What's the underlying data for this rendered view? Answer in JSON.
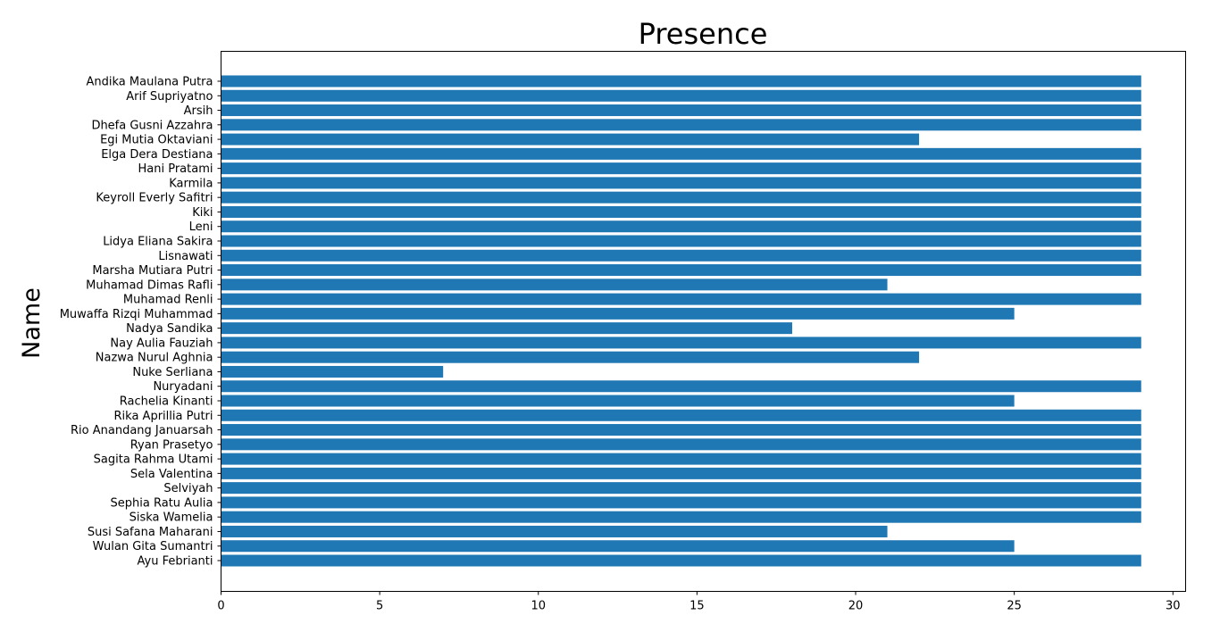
{
  "chart_data": {
    "type": "bar",
    "orientation": "horizontal",
    "title": "Presence",
    "xlabel": "",
    "ylabel": "Name",
    "xlim": [
      0,
      30.4
    ],
    "xticks": [
      0,
      5,
      10,
      15,
      20,
      25,
      30
    ],
    "grid": false,
    "bar_color": "#1f77b4",
    "categories": [
      "Andika Maulana Putra",
      "Arif Supriyatno",
      "Arsih",
      "Dhefa Gusni Azzahra",
      "Egi Mutia Oktaviani",
      "Elga Dera Destiana",
      "Hani Pratami",
      "Karmila",
      "Keyroll Everly Safitri",
      "Kiki",
      "Leni",
      "Lidya Eliana Sakira",
      "Lisnawati",
      "Marsha Mutiara Putri",
      "Muhamad Dimas Rafli",
      "Muhamad Renli",
      "Muwaffa Rizqi Muhammad",
      "Nadya Sandika",
      "Nay Aulia Fauziah",
      "Nazwa Nurul Aghnia",
      "Nuke Serliana",
      "Nuryadani",
      "Rachelia Kinanti",
      "Rika Aprillia Putri",
      "Rio Anandang Januarsah",
      "Ryan Prasetyo",
      "Sagita Rahma Utami",
      "Sela Valentina",
      "Selviyah",
      "Sephia Ratu Aulia",
      "Siska Wamelia",
      "Susi Safana Maharani",
      "Wulan Gita Sumantri",
      "Ayu Febrianti"
    ],
    "values": [
      29,
      29,
      29,
      29,
      22,
      29,
      29,
      29,
      29,
      29,
      29,
      29,
      29,
      29,
      21,
      29,
      25,
      18,
      29,
      22,
      7,
      29,
      25,
      29,
      29,
      29,
      29,
      29,
      29,
      29,
      29,
      21,
      25,
      29
    ]
  }
}
